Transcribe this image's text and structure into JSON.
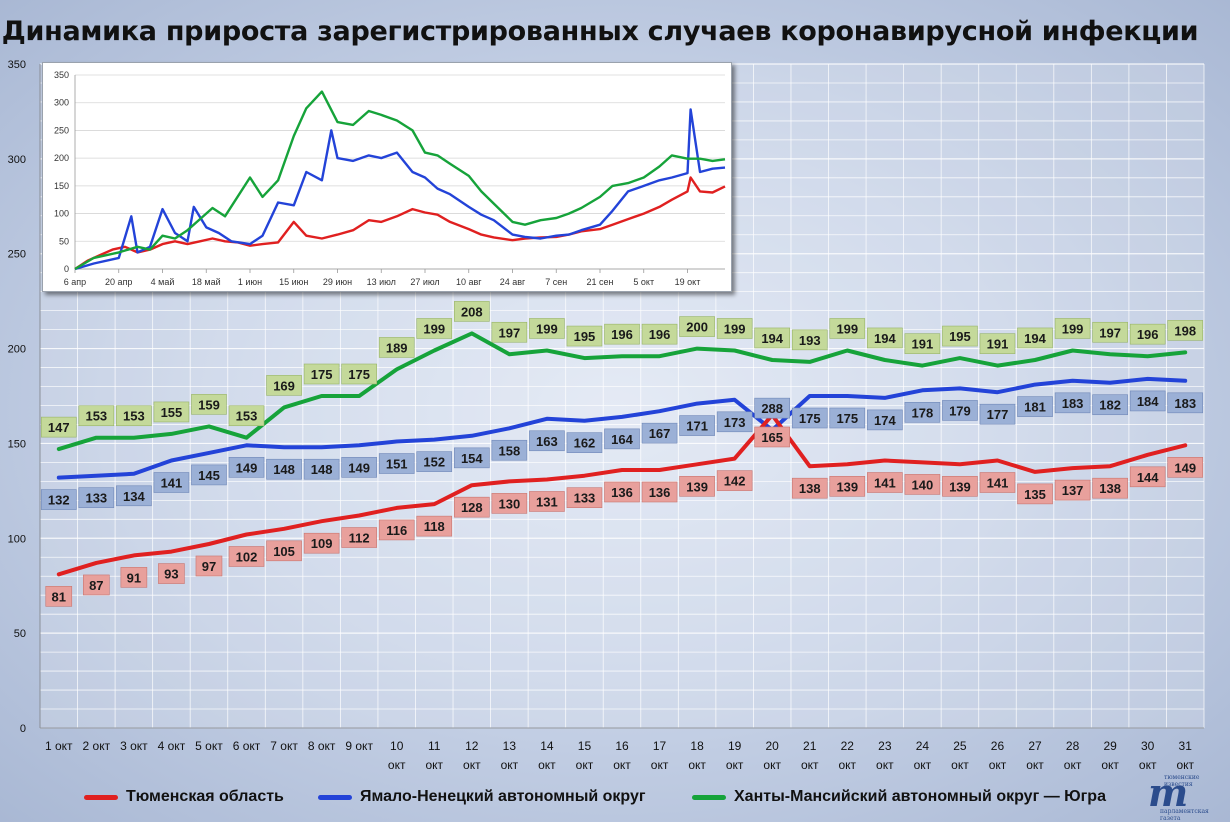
{
  "title": "Динамика прироста зарегистрированных случаев коронавирусной инфекции",
  "colors": {
    "tyumen": "#e02020",
    "yamal": "#2343d8",
    "khmao": "#16a33a"
  },
  "legend": [
    {
      "key": "tyumen",
      "label": "Тюменская область"
    },
    {
      "key": "yamal",
      "label": "Ямало-Ненецкий автономный округ"
    },
    {
      "key": "khmao",
      "label": "Ханты-Мансийский автономный округ — Югра"
    }
  ],
  "logo": {
    "mark": "m",
    "top_text": "тюменские известия",
    "bottom_text": "парламентская газета"
  },
  "chart_data": [
    {
      "type": "line",
      "title": "Динамика прироста зарегистрированных случаев коронавирусной инфекции",
      "y_ticks": [
        "0",
        "50",
        "100",
        "150",
        "200",
        "250",
        "300",
        "350"
      ],
      "ylim": [
        0,
        350
      ],
      "grid": true,
      "legend_position": "bottom",
      "categories": [
        [
          "1 окт"
        ],
        [
          "2 окт"
        ],
        [
          "3 окт"
        ],
        [
          "4 окт"
        ],
        [
          "5 окт"
        ],
        [
          "6 окт"
        ],
        [
          "7 окт"
        ],
        [
          "8 окт"
        ],
        [
          "9 окт"
        ],
        [
          "10",
          "окт"
        ],
        [
          "11",
          "окт"
        ],
        [
          "12",
          "окт"
        ],
        [
          "13",
          "окт"
        ],
        [
          "14",
          "окт"
        ],
        [
          "15",
          "окт"
        ],
        [
          "16",
          "окт"
        ],
        [
          "17",
          "окт"
        ],
        [
          "18",
          "окт"
        ],
        [
          "19",
          "окт"
        ],
        [
          "20",
          "окт"
        ],
        [
          "21",
          "окт"
        ],
        [
          "22",
          "окт"
        ],
        [
          "23",
          "окт"
        ],
        [
          "24",
          "окт"
        ],
        [
          "25",
          "окт"
        ],
        [
          "26",
          "окт"
        ],
        [
          "27",
          "окт"
        ],
        [
          "28",
          "окт"
        ],
        [
          "29",
          "окт"
        ],
        [
          "30",
          "окт"
        ],
        [
          "31",
          "окт"
        ]
      ],
      "series": [
        {
          "name": "Тюменская область",
          "key": "tyumen",
          "values": [
            81,
            87,
            91,
            93,
            97,
            102,
            105,
            109,
            112,
            116,
            118,
            128,
            130,
            131,
            133,
            136,
            136,
            139,
            142,
            165,
            138,
            139,
            141,
            140,
            139,
            141,
            135,
            137,
            138,
            144,
            149
          ]
        },
        {
          "name": "Ямало-Ненецкий автономный округ",
          "key": "yamal",
          "values": [
            132,
            133,
            134,
            141,
            145,
            149,
            148,
            148,
            149,
            151,
            152,
            154,
            158,
            163,
            162,
            164,
            167,
            171,
            173,
            288,
            175,
            175,
            174,
            178,
            179,
            177,
            181,
            183,
            182,
            184,
            183
          ]
        },
        {
          "name": "Ханты-Мансийский автономный округ — Югра",
          "key": "khmao",
          "values": [
            147,
            153,
            153,
            155,
            159,
            153,
            169,
            175,
            175,
            189,
            199,
            208,
            197,
            199,
            195,
            196,
            196,
            200,
            199,
            194,
            193,
            199,
            194,
            191,
            195,
            191,
            194,
            199,
            197,
            196,
            198
          ]
        }
      ]
    },
    {
      "type": "line",
      "title": "",
      "y_ticks": [
        "0",
        "50",
        "100",
        "150",
        "200",
        "250",
        "300",
        "350"
      ],
      "ylim": [
        0,
        350
      ],
      "grid": true,
      "x_tick_labels": [
        "6 апр",
        "20 апр",
        "4 май",
        "18 май",
        "1 июн",
        "15 июн",
        "29 июн",
        "13 июл",
        "27 июл",
        "10 авг",
        "24 авг",
        "7 сен",
        "21 сен",
        "5 окт",
        "19 окт"
      ],
      "x_start": "6 апр",
      "x_end": "31 окт",
      "series": [
        {
          "key": "tyumen",
          "points": [
            [
              "6 апр",
              0
            ],
            [
              "10 апр",
              15
            ],
            [
              "14 апр",
              25
            ],
            [
              "18 апр",
              35
            ],
            [
              "22 апр",
              40
            ],
            [
              "26 апр",
              30
            ],
            [
              "30 апр",
              35
            ],
            [
              "4 май",
              45
            ],
            [
              "8 май",
              50
            ],
            [
              "12 май",
              45
            ],
            [
              "16 май",
              50
            ],
            [
              "20 май",
              55
            ],
            [
              "24 май",
              50
            ],
            [
              "28 май",
              48
            ],
            [
              "1 июн",
              42
            ],
            [
              "5 июн",
              45
            ],
            [
              "10 июн",
              48
            ],
            [
              "15 июн",
              85
            ],
            [
              "19 июн",
              60
            ],
            [
              "24 июн",
              55
            ],
            [
              "29 июн",
              62
            ],
            [
              "4 июл",
              70
            ],
            [
              "9 июл",
              88
            ],
            [
              "13 июл",
              85
            ],
            [
              "18 июл",
              95
            ],
            [
              "23 июл",
              108
            ],
            [
              "27 июл",
              102
            ],
            [
              "31 июл",
              98
            ],
            [
              "4 авг",
              85
            ],
            [
              "10 авг",
              72
            ],
            [
              "14 авг",
              62
            ],
            [
              "18 авг",
              57
            ],
            [
              "24 авг",
              52
            ],
            [
              "28 авг",
              55
            ],
            [
              "2 сен",
              57
            ],
            [
              "7 сен",
              58
            ],
            [
              "11 сен",
              62
            ],
            [
              "15 сен",
              68
            ],
            [
              "21 сен",
              72
            ],
            [
              "25 сен",
              80
            ],
            [
              "30 сен",
              90
            ],
            [
              "5 окт",
              100
            ],
            [
              "10 окт",
              112
            ],
            [
              "14 окт",
              125
            ],
            [
              "19 окт",
              140
            ],
            [
              "20 окт",
              165
            ],
            [
              "23 окт",
              140
            ],
            [
              "27 окт",
              138
            ],
            [
              "31 окт",
              149
            ]
          ]
        },
        {
          "key": "yamal",
          "points": [
            [
              "6 апр",
              0
            ],
            [
              "12 апр",
              10
            ],
            [
              "20 апр",
              20
            ],
            [
              "24 апр",
              95
            ],
            [
              "26 апр",
              30
            ],
            [
              "30 апр",
              40
            ],
            [
              "4 май",
              108
            ],
            [
              "8 май",
              65
            ],
            [
              "12 май",
              50
            ],
            [
              "14 май",
              112
            ],
            [
              "18 май",
              75
            ],
            [
              "22 май",
              65
            ],
            [
              "26 май",
              50
            ],
            [
              "1 июн",
              45
            ],
            [
              "5 июн",
              60
            ],
            [
              "10 июн",
              120
            ],
            [
              "15 июн",
              115
            ],
            [
              "19 июн",
              175
            ],
            [
              "24 июн",
              160
            ],
            [
              "27 июн",
              250
            ],
            [
              "29 июн",
              200
            ],
            [
              "4 июл",
              195
            ],
            [
              "9 июл",
              205
            ],
            [
              "13 июл",
              200
            ],
            [
              "18 июл",
              210
            ],
            [
              "23 июл",
              175
            ],
            [
              "27 июл",
              165
            ],
            [
              "31 июл",
              145
            ],
            [
              "4 авг",
              135
            ],
            [
              "10 авг",
              112
            ],
            [
              "14 авг",
              98
            ],
            [
              "18 авг",
              88
            ],
            [
              "24 авг",
              62
            ],
            [
              "28 авг",
              58
            ],
            [
              "2 сен",
              55
            ],
            [
              "7 сен",
              60
            ],
            [
              "11 сен",
              62
            ],
            [
              "15 сен",
              70
            ],
            [
              "21 сен",
              80
            ],
            [
              "25 сен",
              105
            ],
            [
              "30 сен",
              140
            ],
            [
              "5 окт",
              150
            ],
            [
              "10 окт",
              160
            ],
            [
              "14 окт",
              165
            ],
            [
              "19 окт",
              173
            ],
            [
              "20 окт",
              288
            ],
            [
              "23 окт",
              175
            ],
            [
              "27 окт",
              181
            ],
            [
              "31 окт",
              183
            ]
          ]
        },
        {
          "key": "khmao",
          "points": [
            [
              "6 апр",
              0
            ],
            [
              "12 апр",
              20
            ],
            [
              "20 апр",
              30
            ],
            [
              "26 апр",
              40
            ],
            [
              "30 апр",
              35
            ],
            [
              "4 май",
              60
            ],
            [
              "8 май",
              55
            ],
            [
              "12 май",
              70
            ],
            [
              "16 май",
              90
            ],
            [
              "20 май",
              110
            ],
            [
              "24 май",
              95
            ],
            [
              "1 июн",
              165
            ],
            [
              "5 июн",
              130
            ],
            [
              "10 июн",
              160
            ],
            [
              "15 июн",
              240
            ],
            [
              "19 июн",
              290
            ],
            [
              "24 июн",
              320
            ],
            [
              "29 июн",
              265
            ],
            [
              "4 июл",
              260
            ],
            [
              "9 июл",
              285
            ],
            [
              "13 июл",
              278
            ],
            [
              "18 июл",
              268
            ],
            [
              "23 июл",
              250
            ],
            [
              "27 июл",
              210
            ],
            [
              "31 июл",
              205
            ],
            [
              "4 авг",
              190
            ],
            [
              "10 авг",
              168
            ],
            [
              "14 авг",
              140
            ],
            [
              "18 авг",
              118
            ],
            [
              "24 авг",
              85
            ],
            [
              "28 авг",
              80
            ],
            [
              "2 сен",
              88
            ],
            [
              "7 сен",
              92
            ],
            [
              "11 сен",
              100
            ],
            [
              "15 сен",
              110
            ],
            [
              "21 сен",
              130
            ],
            [
              "25 сен",
              150
            ],
            [
              "30 сен",
              155
            ],
            [
              "5 окт",
              165
            ],
            [
              "10 окт",
              185
            ],
            [
              "14 окт",
              205
            ],
            [
              "19 окт",
              199
            ],
            [
              "23 окт",
              199
            ],
            [
              "27 окт",
              195
            ],
            [
              "31 окт",
              198
            ]
          ]
        }
      ]
    }
  ]
}
